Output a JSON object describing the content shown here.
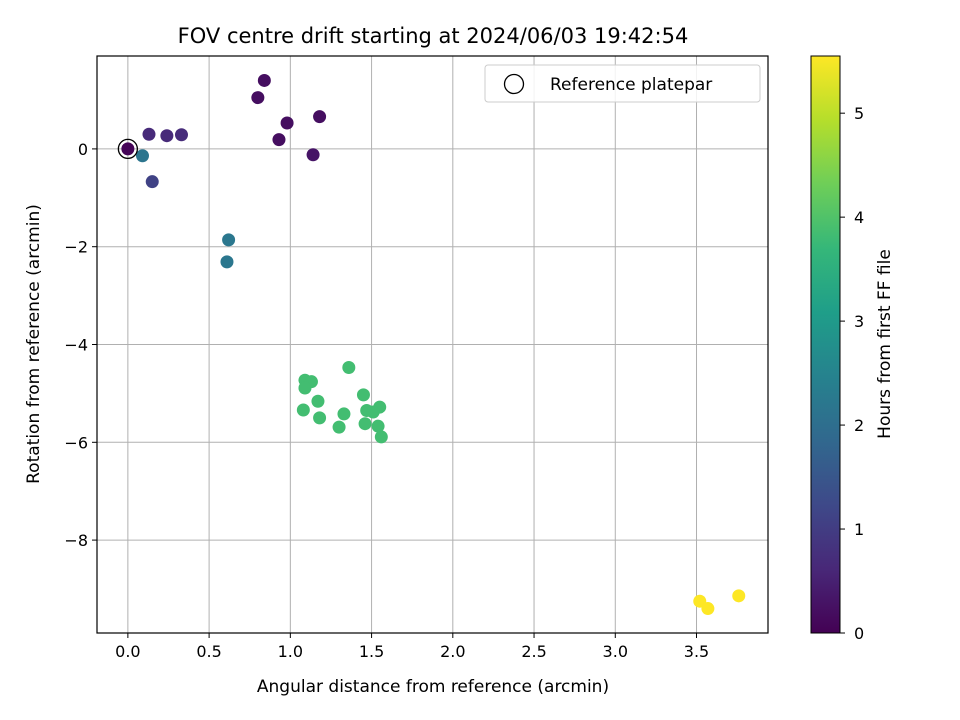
{
  "chart_data": {
    "type": "scatter",
    "title": "FOV centre drift starting at 2024/06/03 19:42:54",
    "xlabel": "Angular distance from reference (arcmin)",
    "ylabel": "Rotation from reference (arcmin)",
    "xlim": [
      -0.19,
      3.94
    ],
    "ylim": [
      -9.9,
      1.9
    ],
    "xticks": [
      0.0,
      0.5,
      1.0,
      1.5,
      2.0,
      2.5,
      3.0,
      3.5
    ],
    "xtick_labels": [
      "0.0",
      "0.5",
      "1.0",
      "1.5",
      "2.0",
      "2.5",
      "3.0",
      "3.5"
    ],
    "yticks": [
      0,
      -2,
      -4,
      -6,
      -8
    ],
    "ytick_labels": [
      "0",
      "−2",
      "−4",
      "−6",
      "−8"
    ],
    "grid": true,
    "legend": {
      "placement": "top-right",
      "label": "Reference platepar"
    },
    "reference_point": {
      "x": 0.0,
      "y": 0.0
    },
    "colorbar": {
      "label": "Hours from first FF file",
      "range": [
        0,
        5.55
      ],
      "ticks": [
        0,
        1,
        2,
        3,
        4,
        5
      ],
      "tick_labels": [
        "0",
        "1",
        "2",
        "3",
        "4",
        "5"
      ],
      "colormap": "viridis",
      "stops": [
        "#440154",
        "#482878",
        "#3e4989",
        "#31688e",
        "#26828e",
        "#1f9e89",
        "#35b779",
        "#6ece58",
        "#b5de2b",
        "#fde725"
      ]
    },
    "points": [
      {
        "x": 0.0,
        "y": 0.0,
        "t": 0.05
      },
      {
        "x": 0.8,
        "y": 1.05,
        "t": 0.2
      },
      {
        "x": 0.84,
        "y": 1.4,
        "t": 0.2
      },
      {
        "x": 0.98,
        "y": 0.53,
        "t": 0.2
      },
      {
        "x": 0.93,
        "y": 0.19,
        "t": 0.2
      },
      {
        "x": 1.18,
        "y": 0.66,
        "t": 0.2
      },
      {
        "x": 1.14,
        "y": -0.12,
        "t": 0.3
      },
      {
        "x": 0.13,
        "y": 0.3,
        "t": 0.65
      },
      {
        "x": 0.24,
        "y": 0.27,
        "t": 0.65
      },
      {
        "x": 0.33,
        "y": 0.29,
        "t": 0.7
      },
      {
        "x": 0.15,
        "y": -0.67,
        "t": 1.1
      },
      {
        "x": 0.09,
        "y": -0.14,
        "t": 2.15
      },
      {
        "x": 0.62,
        "y": -1.86,
        "t": 2.2
      },
      {
        "x": 0.61,
        "y": -2.31,
        "t": 2.2
      },
      {
        "x": 1.36,
        "y": -4.47,
        "t": 3.85
      },
      {
        "x": 1.09,
        "y": -4.73,
        "t": 3.85
      },
      {
        "x": 1.13,
        "y": -4.76,
        "t": 3.85
      },
      {
        "x": 1.09,
        "y": -4.89,
        "t": 3.85
      },
      {
        "x": 1.45,
        "y": -5.03,
        "t": 3.85
      },
      {
        "x": 1.17,
        "y": -5.16,
        "t": 3.85
      },
      {
        "x": 1.55,
        "y": -5.28,
        "t": 3.85
      },
      {
        "x": 1.08,
        "y": -5.34,
        "t": 3.85
      },
      {
        "x": 1.47,
        "y": -5.35,
        "t": 3.85
      },
      {
        "x": 1.51,
        "y": -5.38,
        "t": 3.85
      },
      {
        "x": 1.33,
        "y": -5.42,
        "t": 3.85
      },
      {
        "x": 1.18,
        "y": -5.5,
        "t": 3.85
      },
      {
        "x": 1.46,
        "y": -5.62,
        "t": 3.85
      },
      {
        "x": 1.54,
        "y": -5.67,
        "t": 3.85
      },
      {
        "x": 1.3,
        "y": -5.69,
        "t": 3.85
      },
      {
        "x": 1.56,
        "y": -5.89,
        "t": 3.85
      },
      {
        "x": 3.52,
        "y": -9.25,
        "t": 5.55
      },
      {
        "x": 3.57,
        "y": -9.4,
        "t": 5.55
      },
      {
        "x": 3.76,
        "y": -9.14,
        "t": 5.55
      }
    ]
  }
}
